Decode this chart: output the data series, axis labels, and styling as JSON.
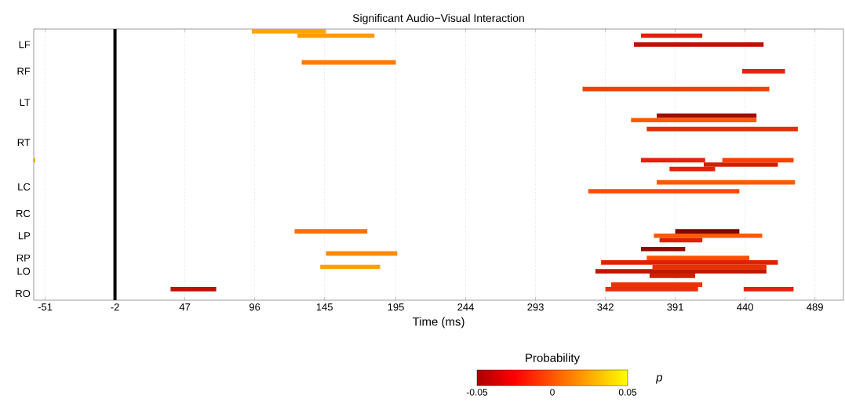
{
  "chart_data": {
    "type": "bar",
    "orientation": "horizontal",
    "title": "Significant Audio−Visual Interaction",
    "xlabel": "Time (ms)",
    "clabel": "Probability",
    "annotations": [
      "p"
    ],
    "categories": [
      null,
      null,
      null,
      "LF",
      null,
      null,
      null,
      null,
      null,
      "RF",
      null,
      null,
      null,
      null,
      null,
      null,
      "LT",
      null,
      null,
      null,
      null,
      null,
      null,
      null,
      null,
      "RT",
      null,
      null,
      null,
      null,
      null,
      null,
      null,
      null,
      null,
      "LC",
      null,
      null,
      null,
      null,
      null,
      "RC",
      null,
      null,
      null,
      null,
      "LP",
      null,
      null,
      null,
      null,
      "RP",
      null,
      null,
      "LO",
      null,
      null,
      null,
      null,
      "RO",
      null
    ],
    "series": [
      {
        "base": [
          94,
          126,
          null,
          362,
          null,
          null,
          null,
          129,
          null,
          438,
          null,
          null,
          null,
          326,
          null,
          null,
          null,
          null,
          null,
          378,
          360,
          null,
          371,
          null,
          null,
          null,
          null,
          null,
          null,
          -59,
          411,
          387,
          null,
          null,
          378,
          null,
          330,
          null,
          null,
          null,
          null,
          null,
          null,
          null,
          null,
          124,
          376,
          380,
          null,
          367,
          146,
          371,
          339,
          142,
          335,
          373,
          null,
          346,
          37,
          null,
          null
        ],
        "values": [
          52,
          54,
          null,
          91,
          null,
          null,
          null,
          66,
          null,
          30,
          null,
          null,
          null,
          131,
          null,
          null,
          null,
          null,
          null,
          70,
          88,
          null,
          106,
          null,
          null,
          null,
          null,
          null,
          null,
          1,
          52,
          32,
          null,
          null,
          97,
          null,
          106,
          null,
          null,
          null,
          null,
          null,
          null,
          null,
          null,
          51,
          76,
          30,
          null,
          31,
          50,
          72,
          124,
          42,
          120,
          32,
          null,
          64,
          32,
          null,
          null
        ],
        "colors": [
          "#ffa500",
          "#ff9a00",
          null,
          "#c01000",
          null,
          null,
          null,
          "#ff7a00",
          null,
          "#e8200a",
          null,
          null,
          null,
          "#f04000",
          null,
          null,
          null,
          null,
          null,
          "#a00c00",
          "#ff5a00",
          null,
          "#e03000",
          null,
          null,
          null,
          null,
          null,
          null,
          "#ff9a00",
          "#d02000",
          "#e8200a",
          null,
          null,
          "#ff5a00",
          null,
          "#ff4a00",
          null,
          null,
          null,
          null,
          null,
          null,
          null,
          null,
          "#ff7000",
          "#ff5a00",
          "#e02000",
          null,
          "#900a00",
          "#ff8a00",
          "#ff5000",
          "#e02000",
          "#ffa000",
          "#c01800",
          "#d02000",
          null,
          "#f03000",
          "#c01000",
          null,
          null
        ]
      },
      {
        "base": [
          null,
          367,
          null,
          null,
          null,
          null,
          null,
          null,
          null,
          null,
          null,
          null,
          null,
          null,
          null,
          null,
          null,
          null,
          null,
          null,
          null,
          null,
          null,
          null,
          null,
          null,
          null,
          null,
          null,
          367,
          null,
          null,
          null,
          null,
          null,
          null,
          null,
          null,
          null,
          null,
          null,
          null,
          null,
          null,
          null,
          391,
          null,
          null,
          null,
          null,
          null,
          null,
          null,
          375,
          null,
          null,
          null,
          null,
          342,
          null,
          null
        ],
        "values": [
          null,
          43,
          null,
          null,
          null,
          null,
          null,
          null,
          null,
          null,
          null,
          null,
          null,
          null,
          null,
          null,
          null,
          null,
          null,
          null,
          null,
          null,
          null,
          null,
          null,
          null,
          null,
          null,
          null,
          45,
          null,
          null,
          null,
          null,
          null,
          null,
          null,
          null,
          null,
          null,
          null,
          null,
          null,
          null,
          null,
          45,
          null,
          null,
          null,
          null,
          null,
          null,
          null,
          80,
          null,
          null,
          null,
          null,
          65,
          null,
          null
        ],
        "colors": [
          null,
          "#e0200a",
          null,
          null,
          null,
          null,
          null,
          null,
          null,
          null,
          null,
          null,
          null,
          null,
          null,
          null,
          null,
          null,
          null,
          null,
          null,
          null,
          null,
          null,
          null,
          null,
          null,
          null,
          null,
          "#e8200a",
          null,
          null,
          null,
          null,
          null,
          null,
          null,
          null,
          null,
          null,
          null,
          null,
          null,
          null,
          null,
          "#800800",
          null,
          null,
          null,
          null,
          null,
          null,
          null,
          "#e83000",
          null,
          null,
          null,
          null,
          "#e8300a",
          null,
          null
        ]
      },
      {
        "base": [
          null,
          null,
          null,
          null,
          null,
          null,
          null,
          null,
          null,
          null,
          null,
          null,
          null,
          null,
          null,
          null,
          null,
          null,
          null,
          null,
          null,
          null,
          null,
          null,
          null,
          null,
          null,
          null,
          null,
          424,
          null,
          null,
          null,
          null,
          null,
          null,
          null,
          null,
          null,
          null,
          null,
          null,
          null,
          null,
          null,
          null,
          null,
          null,
          null,
          null,
          null,
          null,
          null,
          null,
          null,
          null,
          null,
          null,
          439,
          null,
          null
        ],
        "values": [
          null,
          null,
          null,
          null,
          null,
          null,
          null,
          null,
          null,
          null,
          null,
          null,
          null,
          null,
          null,
          null,
          null,
          null,
          null,
          null,
          null,
          null,
          null,
          null,
          null,
          null,
          null,
          null,
          null,
          50,
          null,
          null,
          null,
          null,
          null,
          null,
          null,
          null,
          null,
          null,
          null,
          null,
          null,
          null,
          null,
          null,
          null,
          null,
          null,
          null,
          null,
          null,
          null,
          null,
          null,
          null,
          null,
          null,
          35,
          null,
          null
        ],
        "colors": [
          null,
          null,
          null,
          null,
          null,
          null,
          null,
          null,
          null,
          null,
          null,
          null,
          null,
          null,
          null,
          null,
          null,
          null,
          null,
          null,
          null,
          null,
          null,
          null,
          null,
          null,
          null,
          null,
          null,
          "#ff4000",
          null,
          null,
          null,
          null,
          null,
          null,
          null,
          null,
          null,
          null,
          null,
          null,
          null,
          null,
          null,
          null,
          null,
          null,
          null,
          null,
          null,
          null,
          null,
          null,
          null,
          null,
          null,
          null,
          "#e8200a",
          null,
          null
        ]
      }
    ],
    "xlim": [
      -59,
      509
    ],
    "xticks": [
      -51,
      -2,
      47,
      96,
      145,
      195,
      244,
      293,
      342,
      391,
      440,
      489
    ],
    "grid": "x",
    "ref_lines": [
      {
        "axis": "x",
        "value": -2,
        "color": "#000000"
      }
    ],
    "clim": [
      -0.05,
      0.05
    ],
    "cticks": [
      -0.05,
      0,
      0.05
    ]
  }
}
